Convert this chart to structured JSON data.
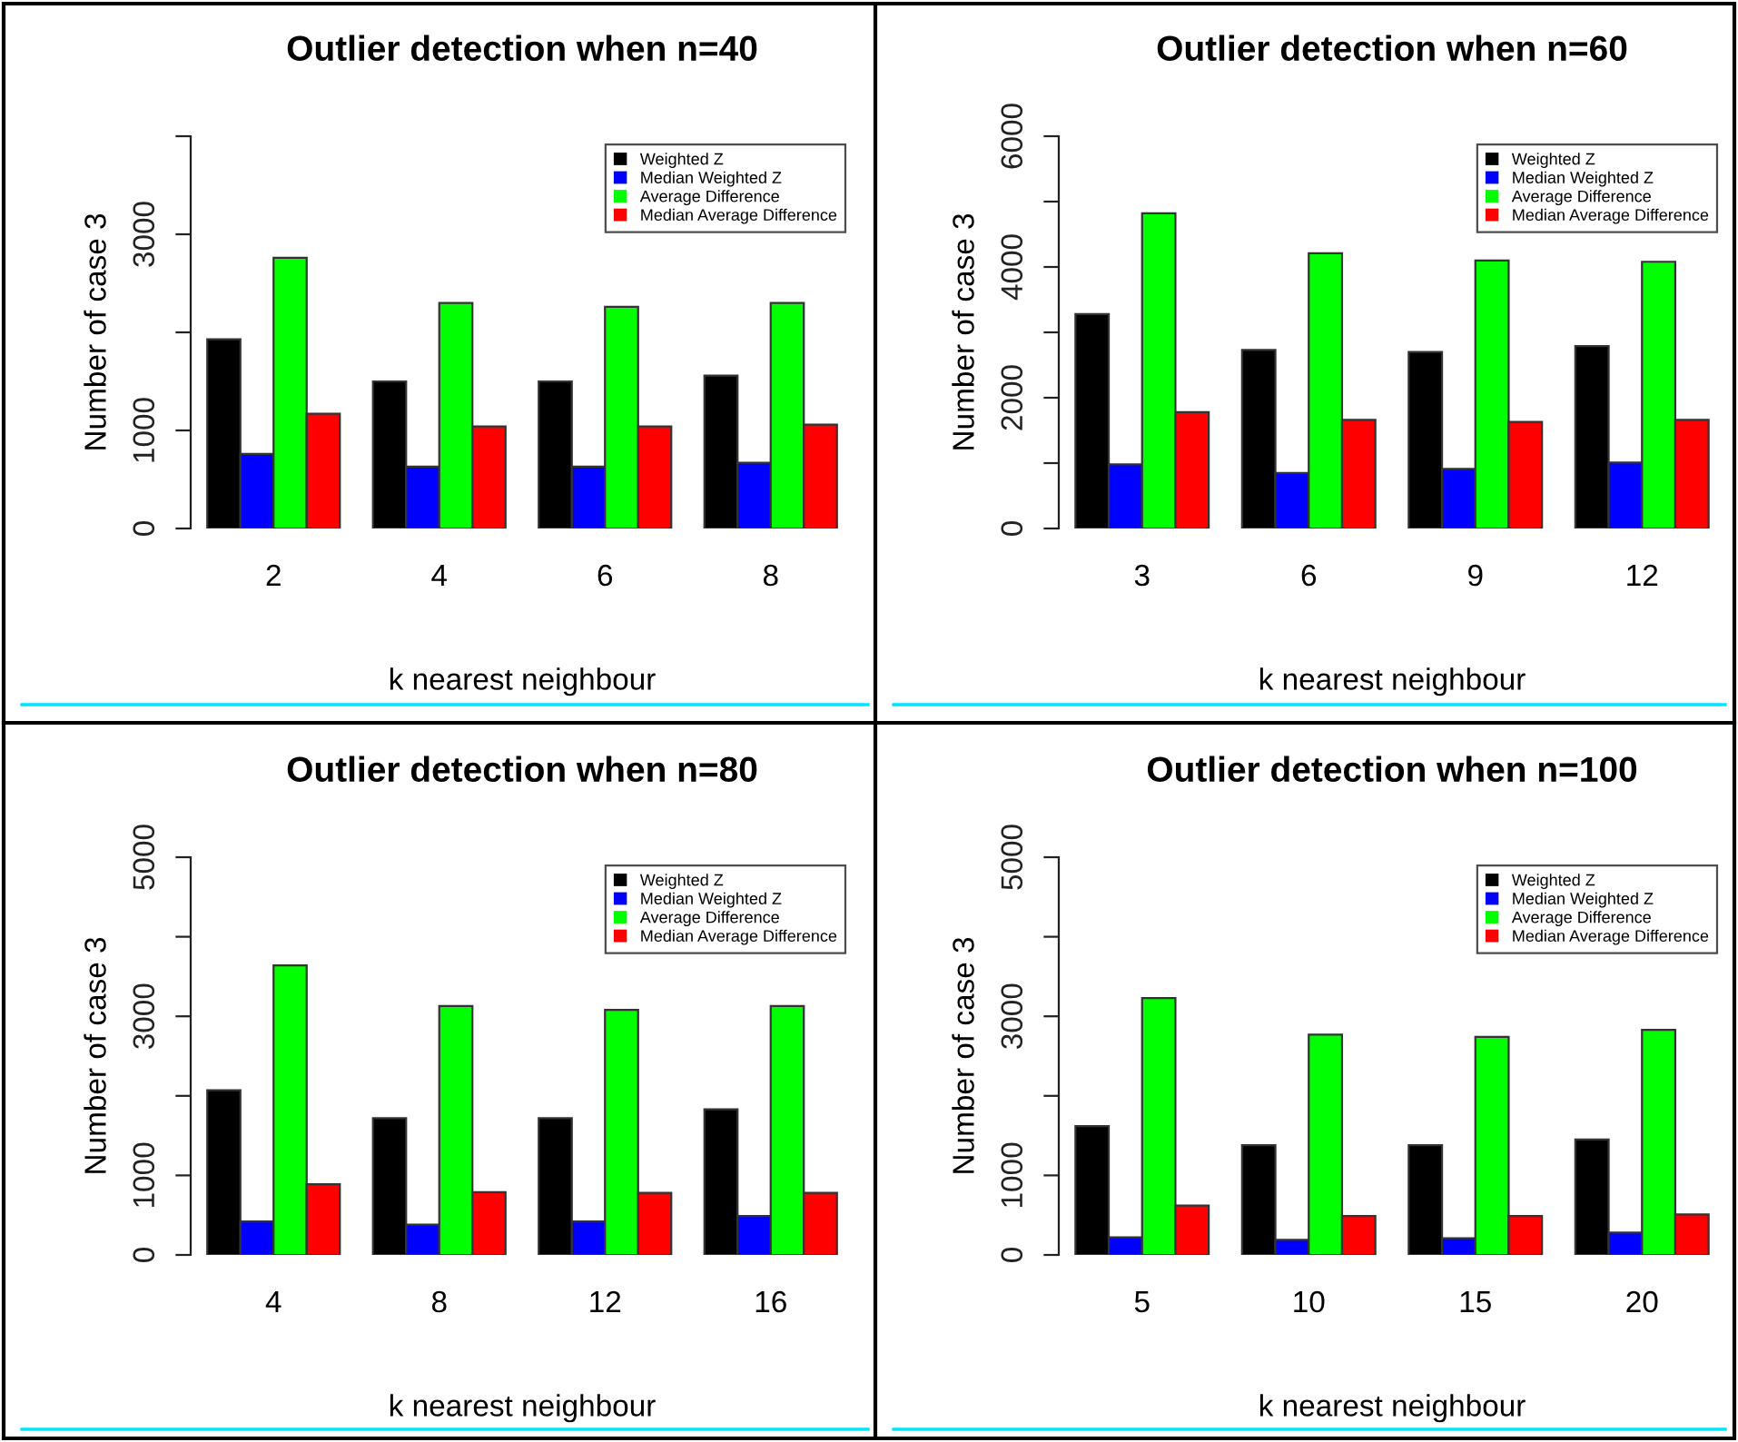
{
  "chart_data": [
    {
      "type": "bar",
      "title": "Outlier detection when n=40",
      "xlabel": "k nearest neighbour",
      "ylabel": "Number of case 3",
      "categories": [
        "2",
        "4",
        "6",
        "8"
      ],
      "legend": "top right",
      "grid": false,
      "ylim": [
        0,
        4000
      ],
      "yticks": [
        0,
        1000,
        {
          "value": 2000,
          "label": null
        },
        3000,
        {
          "value": 4000,
          "label": null
        }
      ],
      "series": [
        {
          "name": "Weighted Z",
          "color": "#000000",
          "values": [
            1930,
            1500,
            1500,
            1560
          ]
        },
        {
          "name": "Median Weighted Z",
          "color": "#0000ff",
          "values": [
            760,
            630,
            630,
            670
          ]
        },
        {
          "name": "Average Difference",
          "color": "#00ff00",
          "values": [
            2760,
            2300,
            2260,
            2300
          ]
        },
        {
          "name": "Median Average Difference",
          "color": "#ff0000",
          "values": [
            1170,
            1040,
            1040,
            1060
          ]
        }
      ]
    },
    {
      "type": "bar",
      "title": "Outlier detection when n=60",
      "xlabel": "k nearest neighbour",
      "ylabel": "Number of case 3",
      "categories": [
        "3",
        "6",
        "9",
        "12"
      ],
      "legend": "top right",
      "grid": false,
      "ylim": [
        0,
        6000
      ],
      "yticks": [
        0,
        {
          "value": 1000,
          "label": null
        },
        2000,
        {
          "value": 3000,
          "label": null
        },
        4000,
        {
          "value": 5000,
          "label": null
        },
        6000
      ],
      "series": [
        {
          "name": "Weighted Z",
          "color": "#000000",
          "values": [
            3280,
            2730,
            2700,
            2790
          ]
        },
        {
          "name": "Median Weighted Z",
          "color": "#0000ff",
          "values": [
            980,
            850,
            910,
            1010
          ]
        },
        {
          "name": "Average Difference",
          "color": "#00ff00",
          "values": [
            4820,
            4210,
            4100,
            4080
          ]
        },
        {
          "name": "Median Average Difference",
          "color": "#ff0000",
          "values": [
            1780,
            1660,
            1630,
            1660
          ]
        }
      ]
    },
    {
      "type": "bar",
      "title": "Outlier detection when n=80",
      "xlabel": "k nearest neighbour",
      "ylabel": "Number of case 3",
      "categories": [
        "4",
        "8",
        "12",
        "16"
      ],
      "legend": "top right",
      "grid": false,
      "ylim": [
        0,
        5000
      ],
      "yticks": [
        0,
        1000,
        {
          "value": 2000,
          "label": null
        },
        3000,
        {
          "value": 4000,
          "label": null
        },
        5000
      ],
      "series": [
        {
          "name": "Weighted Z",
          "color": "#000000",
          "values": [
            2070,
            1720,
            1720,
            1830
          ]
        },
        {
          "name": "Median Weighted Z",
          "color": "#0000ff",
          "values": [
            420,
            380,
            420,
            490
          ]
        },
        {
          "name": "Average Difference",
          "color": "#00ff00",
          "values": [
            3640,
            3130,
            3080,
            3130
          ]
        },
        {
          "name": "Median Average Difference",
          "color": "#ff0000",
          "values": [
            890,
            790,
            780,
            780
          ]
        }
      ]
    },
    {
      "type": "bar",
      "title": "Outlier detection when n=100",
      "xlabel": "k nearest neighbour",
      "ylabel": "Number of case 3",
      "categories": [
        "5",
        "10",
        "15",
        "20"
      ],
      "legend": "top right",
      "grid": false,
      "ylim": [
        0,
        5000
      ],
      "yticks": [
        0,
        1000,
        {
          "value": 2000,
          "label": null
        },
        3000,
        {
          "value": 4000,
          "label": null
        },
        5000
      ],
      "series": [
        {
          "name": "Weighted Z",
          "color": "#000000",
          "values": [
            1620,
            1380,
            1380,
            1450
          ]
        },
        {
          "name": "Median Weighted Z",
          "color": "#0000ff",
          "values": [
            220,
            190,
            210,
            280
          ]
        },
        {
          "name": "Average Difference",
          "color": "#00ff00",
          "values": [
            3230,
            2770,
            2740,
            2830
          ]
        },
        {
          "name": "Median Average Difference",
          "color": "#ff0000",
          "values": [
            620,
            490,
            490,
            510
          ]
        }
      ]
    }
  ]
}
